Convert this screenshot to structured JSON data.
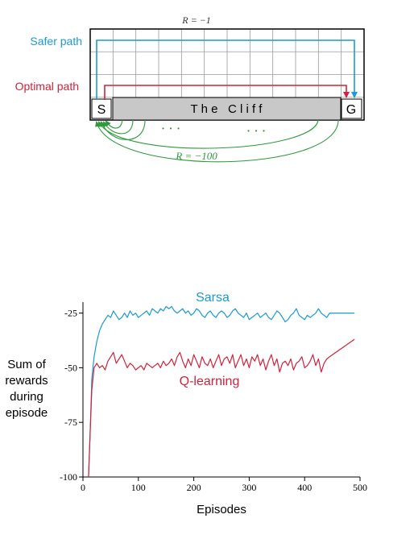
{
  "gridworld": {
    "reward_top": "R = −1",
    "reward_cliff": "R = −100",
    "safer_label": "Safer path",
    "optimal_label": "Optimal path",
    "start_label": "S",
    "goal_label": "G",
    "cliff_label": "T h e   C l i f f",
    "dots": "•   •   •",
    "cols": 12,
    "rows": 4,
    "colors": {
      "safer": "#1a9ad6",
      "optimal": "#d0223a",
      "cliff_arcs": "#2e9a3c",
      "cliff_fill": "#c8c8c8",
      "grid": "#9a9a9a"
    }
  },
  "chart_data": {
    "type": "line",
    "xlabel": "Episodes",
    "ylabel_lines": [
      "Sum of",
      "rewards",
      "during",
      "episode"
    ],
    "xlim": [
      0,
      500
    ],
    "ylim": [
      -100,
      -20
    ],
    "xticks": [
      0,
      100,
      200,
      300,
      400,
      500
    ],
    "yticks": [
      -25,
      -50,
      -75,
      -100
    ],
    "series": [
      {
        "name": "Sarsa",
        "color": "#1a9ad6",
        "x": [
          10,
          13,
          16,
          20,
          25,
          30,
          35,
          40,
          45,
          50,
          55,
          60,
          65,
          70,
          75,
          80,
          85,
          90,
          95,
          100,
          105,
          110,
          115,
          120,
          125,
          130,
          135,
          140,
          145,
          150,
          155,
          160,
          165,
          170,
          175,
          180,
          185,
          190,
          195,
          200,
          205,
          210,
          215,
          220,
          225,
          230,
          235,
          240,
          245,
          250,
          255,
          260,
          265,
          270,
          275,
          280,
          285,
          290,
          295,
          300,
          305,
          310,
          315,
          320,
          325,
          330,
          335,
          340,
          345,
          350,
          355,
          360,
          365,
          370,
          375,
          380,
          385,
          390,
          395,
          400,
          405,
          410,
          415,
          420,
          425,
          430,
          435,
          440,
          445,
          490
        ],
        "values": [
          -100,
          -80,
          -55,
          -45,
          -38,
          -33,
          -30,
          -28,
          -26,
          -27,
          -24,
          -26,
          -28,
          -27,
          -25,
          -27,
          -24,
          -26,
          -25,
          -27,
          -26,
          -25,
          -24,
          -26,
          -23,
          -24,
          -25,
          -23,
          -24,
          -22,
          -23,
          -22,
          -24,
          -25,
          -24,
          -23,
          -25,
          -24,
          -26,
          -25,
          -23,
          -24,
          -26,
          -27,
          -25,
          -24,
          -26,
          -27,
          -25,
          -24,
          -25,
          -27,
          -26,
          -24,
          -23,
          -25,
          -26,
          -27,
          -25,
          -28,
          -27,
          -26,
          -25,
          -27,
          -26,
          -25,
          -27,
          -28,
          -26,
          -24,
          -25,
          -27,
          -29,
          -28,
          -26,
          -25,
          -23,
          -26,
          -27,
          -28,
          -26,
          -27,
          -26,
          -25,
          -23,
          -25,
          -26,
          -27,
          -25,
          -25
        ]
      },
      {
        "name": "Q-learning",
        "color": "#d0223a",
        "x": [
          10,
          13,
          16,
          20,
          25,
          30,
          35,
          40,
          45,
          50,
          55,
          60,
          65,
          70,
          75,
          80,
          85,
          90,
          95,
          100,
          105,
          110,
          115,
          120,
          125,
          130,
          135,
          140,
          145,
          150,
          155,
          160,
          165,
          170,
          175,
          180,
          185,
          190,
          195,
          200,
          205,
          210,
          215,
          220,
          225,
          230,
          235,
          240,
          245,
          250,
          255,
          260,
          265,
          270,
          275,
          280,
          285,
          290,
          295,
          300,
          305,
          310,
          315,
          320,
          325,
          330,
          335,
          340,
          345,
          350,
          355,
          360,
          365,
          370,
          375,
          380,
          385,
          390,
          395,
          400,
          405,
          410,
          415,
          420,
          425,
          430,
          435,
          440,
          445,
          490
        ],
        "values": [
          -100,
          -80,
          -60,
          -50,
          -48,
          -50,
          -49,
          -51,
          -47,
          -45,
          -43,
          -48,
          -46,
          -44,
          -47,
          -50,
          -48,
          -49,
          -51,
          -50,
          -49,
          -51,
          -48,
          -49,
          -50,
          -49,
          -48,
          -50,
          -47,
          -49,
          -48,
          -46,
          -49,
          -45,
          -43,
          -47,
          -50,
          -46,
          -49,
          -44,
          -47,
          -50,
          -45,
          -48,
          -49,
          -46,
          -50,
          -47,
          -44,
          -49,
          -46,
          -45,
          -48,
          -44,
          -50,
          -47,
          -44,
          -49,
          -46,
          -50,
          -45,
          -47,
          -44,
          -49,
          -46,
          -51,
          -47,
          -44,
          -49,
          -46,
          -52,
          -48,
          -47,
          -49,
          -46,
          -51,
          -48,
          -47,
          -45,
          -50,
          -49,
          -47,
          -44,
          -49,
          -46,
          -52,
          -48,
          -46,
          -45,
          -37
        ]
      }
    ],
    "annotations": [
      {
        "text": "Sarsa",
        "color": "#1a9ad6"
      },
      {
        "text": "Q-learning",
        "color": "#d0223a"
      }
    ]
  }
}
